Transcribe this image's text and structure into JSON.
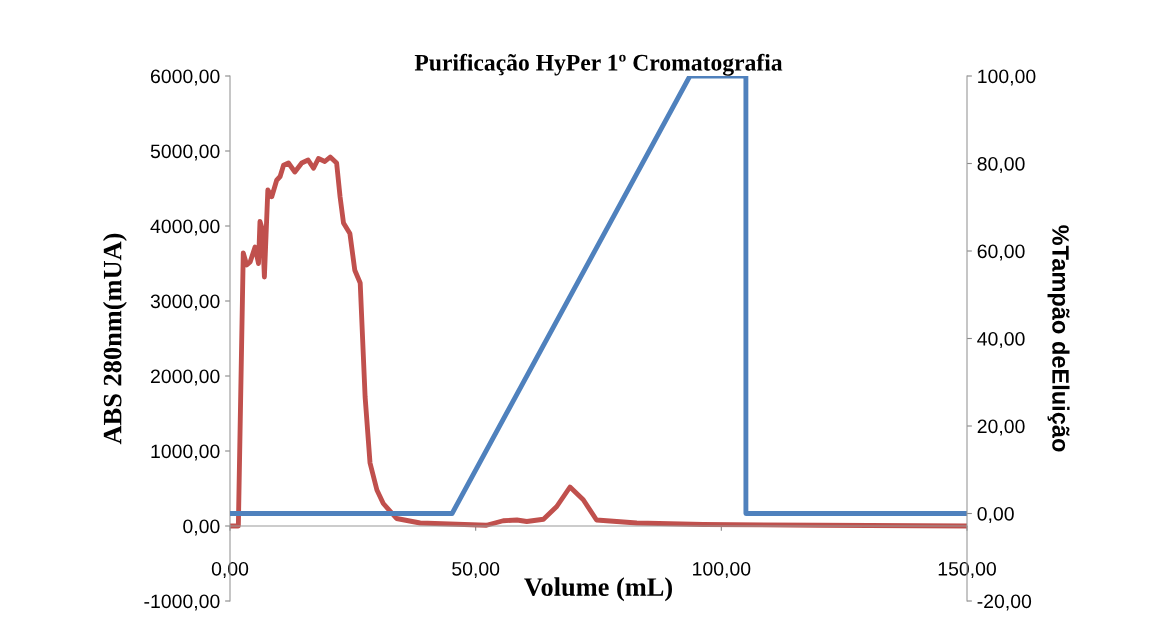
{
  "chart_data": {
    "type": "line",
    "title": "Purificação HyPer 1º Cromatografia",
    "xlabel": "Volume (mL)",
    "ylabel": "ABS 280nm(mUA)",
    "y2label": "%Tampão deEluição",
    "xlim": [
      0,
      150
    ],
    "xticks": [
      {
        "value": 0,
        "label": "0,00"
      },
      {
        "value": 50,
        "label": "50,00"
      },
      {
        "value": 100,
        "label": "100,00"
      },
      {
        "value": 150,
        "label": "150,00"
      }
    ],
    "ylim": [
      -1000,
      6000
    ],
    "yticks": [
      {
        "value": -1000,
        "label": "-1000,00"
      },
      {
        "value": 0,
        "label": "0,00"
      },
      {
        "value": 1000,
        "label": "1000,00"
      },
      {
        "value": 2000,
        "label": "2000,00"
      },
      {
        "value": 3000,
        "label": "3000,00"
      },
      {
        "value": 4000,
        "label": "4000,00"
      },
      {
        "value": 5000,
        "label": "5000,00"
      },
      {
        "value": 6000,
        "label": "6000,00"
      }
    ],
    "y2lim": [
      -20,
      100
    ],
    "y2ticks": [
      {
        "value": -20,
        "label": "-20,00"
      },
      {
        "value": 0,
        "label": "0,00"
      },
      {
        "value": 20,
        "label": "20,00"
      },
      {
        "value": 40,
        "label": "40,00"
      },
      {
        "value": 60,
        "label": "60,00"
      },
      {
        "value": 80,
        "label": "80,00"
      },
      {
        "value": 100,
        "label": "100,00"
      }
    ],
    "grid": false,
    "marker": "none",
    "line_style": "solid",
    "series": [
      {
        "color": "#c0504d",
        "x": [
          0,
          1.2,
          1.7,
          2.7,
          3.4,
          4.1,
          5.1,
          5.8,
          6.1,
          6.6,
          7.0,
          7.7,
          8.5,
          9.5,
          10.2,
          10.9,
          11.9,
          13.2,
          14.6,
          15.9,
          17.0,
          18.0,
          19.3,
          20.4,
          21.7,
          22.4,
          23.1,
          24.4,
          25.4,
          26.5,
          27.5,
          28.5,
          29.9,
          31.2,
          33.9,
          38.7,
          52.2,
          55.6,
          58.4,
          60.4,
          63.8,
          66.5,
          69.2,
          71.9,
          74.6,
          82.8,
          96.3,
          120.1,
          150
        ],
        "values": [
          0,
          0,
          0,
          3640,
          3480,
          3520,
          3720,
          3500,
          4060,
          3950,
          3320,
          4480,
          4390,
          4610,
          4660,
          4810,
          4840,
          4720,
          4840,
          4880,
          4770,
          4900,
          4860,
          4920,
          4840,
          4390,
          4040,
          3900,
          3410,
          3240,
          1720,
          840,
          480,
          300,
          100,
          40,
          10,
          70,
          80,
          60,
          90,
          260,
          520,
          350,
          80,
          40,
          20,
          10,
          0
        ]
      },
      {
        "color": "#4f81bd",
        "axis": "y2",
        "x": [
          0,
          45.2,
          93.6,
          105,
          105,
          150
        ],
        "values": [
          0,
          0,
          100,
          100,
          0,
          0
        ]
      }
    ]
  }
}
